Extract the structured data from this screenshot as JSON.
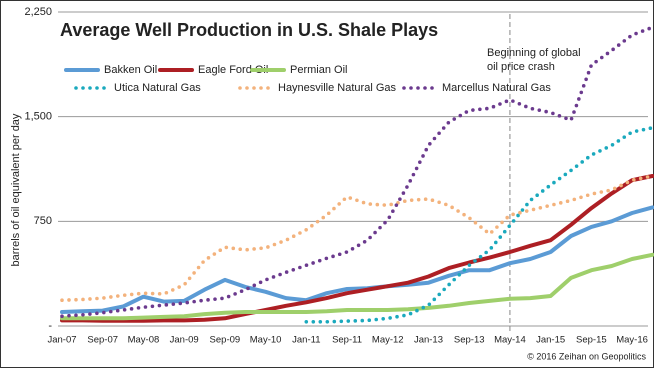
{
  "chart_data": {
    "type": "line",
    "title": "Average Well Production in U.S. Shale Plays",
    "y_label": "barrels of oil equivalent per day",
    "source": "© 2016 Zeihan on Geopolitics",
    "categories": [
      "Jan-07",
      null,
      "Sep-07",
      null,
      "May-08",
      null,
      "Jan-09",
      null,
      "Sep-09",
      null,
      "May-10",
      null,
      "Jan-11",
      null,
      "Sep-11",
      null,
      "May-12",
      null,
      "Jan-13",
      null,
      "Sep-13",
      null,
      "May-14",
      null,
      "Jan-15",
      null,
      "Sep-15",
      null,
      "May-16",
      null
    ],
    "ylim": [
      0,
      2250
    ],
    "yticks": [
      {
        "value": 0,
        "label": "-"
      },
      750,
      {
        "value": 1500,
        "label": "1,500"
      },
      {
        "value": 2250,
        "label": "2,250"
      }
    ],
    "grid": true,
    "annotation": {
      "text": [
        "Beginning of global",
        "oil price crash"
      ],
      "x": "May-14"
    },
    "series": [
      {
        "name": "Bakken Oil",
        "color": "#5b9bd5",
        "style": "solid",
        "values": [
          100,
          105,
          110,
          140,
          210,
          175,
          180,
          260,
          330,
          280,
          245,
          200,
          185,
          235,
          265,
          270,
          285,
          295,
          310,
          360,
          400,
          400,
          450,
          480,
          530,
          645,
          710,
          750,
          810,
          850
        ]
      },
      {
        "name": "Eagle Ford Oil",
        "color": "#ad1f24",
        "style": "solid",
        "values": [
          40,
          40,
          38,
          38,
          38,
          40,
          40,
          45,
          55,
          85,
          115,
          145,
          170,
          200,
          235,
          260,
          285,
          310,
          355,
          415,
          455,
          490,
          530,
          575,
          615,
          725,
          845,
          950,
          1045,
          1075
        ]
      },
      {
        "name": "Permian Oil",
        "color": "#9fcf6b",
        "style": "solid",
        "values": [
          55,
          55,
          55,
          55,
          60,
          65,
          70,
          85,
          95,
          100,
          100,
          100,
          100,
          105,
          115,
          115,
          115,
          120,
          130,
          145,
          165,
          180,
          195,
          200,
          215,
          345,
          400,
          430,
          480,
          510
        ]
      },
      {
        "name": "Utica Natural Gas",
        "color": "#1aa9bd",
        "style": "dotted",
        "values": [
          null,
          null,
          null,
          null,
          null,
          null,
          null,
          null,
          null,
          null,
          null,
          null,
          30,
          30,
          35,
          40,
          55,
          80,
          150,
          295,
          435,
          545,
          720,
          900,
          1010,
          1115,
          1225,
          1295,
          1390,
          1420
        ]
      },
      {
        "name": "Haynesville Natural Gas",
        "color": "#f3b27c",
        "style": "dotted",
        "values": [
          185,
          190,
          200,
          220,
          235,
          230,
          295,
          470,
          565,
          545,
          560,
          615,
          690,
          795,
          925,
          875,
          865,
          900,
          910,
          865,
          775,
          660,
          795,
          830,
          865,
          900,
          945,
          975,
          1045,
          1075
        ]
      },
      {
        "name": "Marcellus Natural Gas",
        "color": "#6b3a8e",
        "style": "dotted",
        "values": [
          70,
          80,
          95,
          115,
          135,
          150,
          165,
          185,
          200,
          260,
          330,
          385,
          435,
          485,
          530,
          615,
          760,
          1010,
          1295,
          1460,
          1545,
          1560,
          1620,
          1560,
          1530,
          1475,
          1870,
          1975,
          2085,
          2140
        ]
      }
    ]
  }
}
